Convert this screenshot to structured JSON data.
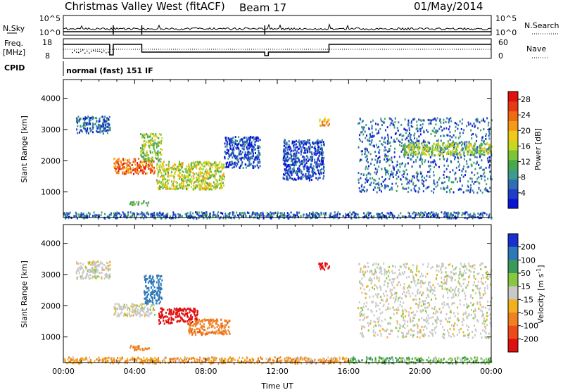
{
  "header": {
    "station": "Christmas Valley West (fitACF)",
    "beam": "Beam 17",
    "date": "01/May/2014"
  },
  "noise_panel": {
    "left_label": "N.Sky",
    "right_label": "N.Search",
    "left_ticks": [
      "10^5",
      "10^0"
    ],
    "right_ticks": [
      "10^5",
      "10^0"
    ]
  },
  "freq_panel": {
    "left_label_line1": "Freq.",
    "left_label_line2": "[MHz]",
    "right_label": "Nave",
    "left_ticks": [
      "18",
      "8"
    ],
    "right_ticks": [
      "60",
      "0"
    ]
  },
  "cpid": {
    "label": "CPID",
    "program": "normal (fast) 151 IF"
  },
  "chart_data": [
    {
      "type": "heatmap",
      "name": "power",
      "ylabel": "Slant Range [km]",
      "xlabel": "Time UT",
      "x_tick_labels": [
        "00:00",
        "04:00",
        "08:00",
        "12:00",
        "16:00",
        "20:00",
        "00:00"
      ],
      "xlim_hours": [
        0,
        24
      ],
      "ylim": [
        180,
        4600
      ],
      "yticks": [
        1000,
        2000,
        3000,
        4000
      ],
      "colorbar": {
        "label": "Power [dB]",
        "ticks": [
          "4",
          "8",
          "12",
          "16",
          "20",
          "24",
          "28"
        ],
        "range": [
          0,
          30
        ],
        "colors": [
          "#0a14d6",
          "#1e3ec8",
          "#2e6fb4",
          "#3e9a8a",
          "#4aa84c",
          "#7cc43a",
          "#c8d820",
          "#f0c818",
          "#f59a16",
          "#f06a14",
          "#e63a12",
          "#e01010"
        ]
      },
      "features": [
        {
          "t0": 0.7,
          "t1": 2.6,
          "r0": 2900,
          "r1": 3450,
          "value": 6
        },
        {
          "t0": 2.8,
          "t1": 5.1,
          "r0": 1600,
          "r1": 2100,
          "value": 24
        },
        {
          "t0": 4.3,
          "t1": 5.5,
          "r0": 2000,
          "r1": 2900,
          "value": 14
        },
        {
          "t0": 5.2,
          "t1": 9.0,
          "r0": 1100,
          "r1": 2000,
          "value": 16
        },
        {
          "t0": 3.7,
          "t1": 4.8,
          "r0": 600,
          "r1": 750,
          "value": 10
        },
        {
          "t0": 9.0,
          "t1": 11.0,
          "r0": 1800,
          "r1": 2800,
          "value": 4
        },
        {
          "t0": 12.3,
          "t1": 14.6,
          "r0": 1400,
          "r1": 2700,
          "value": 4
        },
        {
          "t0": 14.3,
          "t1": 14.9,
          "r0": 3150,
          "r1": 3400,
          "value": 20
        },
        {
          "t0": 16.5,
          "t1": 24.0,
          "r0": 1000,
          "r1": 3400,
          "value": 6
        },
        {
          "t0": 19.0,
          "t1": 24.0,
          "r0": 2200,
          "r1": 2600,
          "value": 14
        },
        {
          "t0": 0.0,
          "t1": 24.0,
          "r0": 180,
          "r1": 380,
          "value": 6
        }
      ]
    },
    {
      "type": "heatmap",
      "name": "velocity",
      "ylabel": "Slant Range [km]",
      "xlabel": "Time UT",
      "x_tick_labels": [
        "00:00",
        "04:00",
        "08:00",
        "12:00",
        "16:00",
        "20:00",
        "00:00"
      ],
      "xlim_hours": [
        0,
        24
      ],
      "ylim": [
        180,
        4600
      ],
      "yticks": [
        1000,
        2000,
        3000,
        4000
      ],
      "colorbar": {
        "label": "Velocity [m s^-1]",
        "ticks": [
          "200",
          "100",
          "50",
          "15",
          "-15",
          "-50",
          "-100",
          "-200"
        ],
        "colors": [
          "#1a2fd0",
          "#2e78b8",
          "#3a9a5a",
          "#86c840",
          "#c8c8c8",
          "#f0b020",
          "#f08020",
          "#ee4a1a",
          "#e01010"
        ]
      },
      "features": [
        {
          "t0": 0.7,
          "t1": 2.6,
          "r0": 2900,
          "r1": 3450,
          "value": 0
        },
        {
          "t0": 2.8,
          "t1": 5.1,
          "r0": 1700,
          "r1": 2100,
          "value": 0
        },
        {
          "t0": 4.5,
          "t1": 5.5,
          "r0": 2100,
          "r1": 3000,
          "value": 120
        },
        {
          "t0": 5.3,
          "t1": 7.5,
          "r0": 1450,
          "r1": 1950,
          "value": -200
        },
        {
          "t0": 7.0,
          "t1": 9.3,
          "r0": 1100,
          "r1": 1600,
          "value": -60
        },
        {
          "t0": 3.7,
          "t1": 4.8,
          "r0": 600,
          "r1": 750,
          "value": -50
        },
        {
          "t0": 14.3,
          "t1": 14.9,
          "r0": 3150,
          "r1": 3400,
          "value": -200
        },
        {
          "t0": 16.5,
          "t1": 24.0,
          "r0": 1000,
          "r1": 3400,
          "value": 0
        },
        {
          "t0": 0.0,
          "t1": 16.0,
          "r0": 180,
          "r1": 380,
          "value": -30
        },
        {
          "t0": 16.0,
          "t1": 24.0,
          "r0": 180,
          "r1": 380,
          "value": 30
        }
      ]
    }
  ]
}
